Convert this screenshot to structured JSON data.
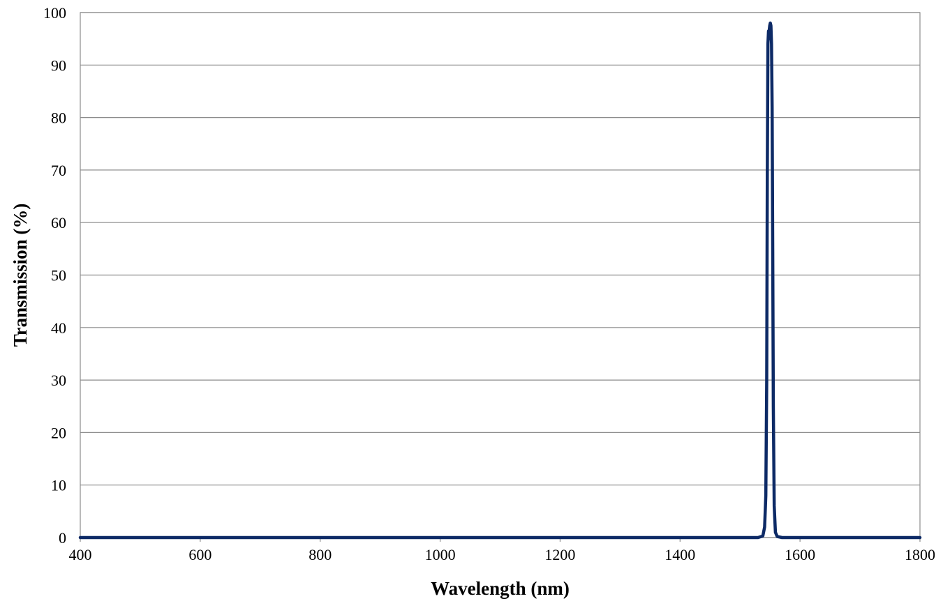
{
  "chart_data": {
    "type": "line",
    "title": "",
    "xlabel": "Wavelength (nm)",
    "ylabel": "Transmission (%)",
    "xlim": [
      400,
      1800
    ],
    "ylim": [
      0,
      100
    ],
    "x_ticks": [
      "400",
      "600",
      "800",
      "1000",
      "1200",
      "1400",
      "1600",
      "1800"
    ],
    "y_ticks": [
      "0",
      "10",
      "20",
      "30",
      "40",
      "50",
      "60",
      "70",
      "80",
      "90",
      "100"
    ],
    "grid": "horizontal",
    "legend": "none",
    "series_color": "#0d2a66",
    "series": [
      {
        "x": [
          400,
          600,
          800,
          1000,
          1200,
          1400,
          1530,
          1538,
          1541,
          1543,
          1544.5,
          1545.5,
          1546.5,
          1547.5,
          1548,
          1548.5,
          1549.5,
          1550.5,
          1551.5,
          1552.5,
          1553.5,
          1554.5,
          1555.5,
          1557,
          1559,
          1562,
          1570,
          1600,
          1800
        ],
        "y": [
          0,
          0,
          0,
          0,
          0,
          0,
          0,
          0.3,
          2,
          8,
          30,
          70,
          94,
          96.5,
          95,
          96.5,
          97.5,
          98,
          97.5,
          94,
          82,
          55,
          25,
          6,
          1,
          0.2,
          0,
          0,
          0
        ]
      }
    ]
  }
}
